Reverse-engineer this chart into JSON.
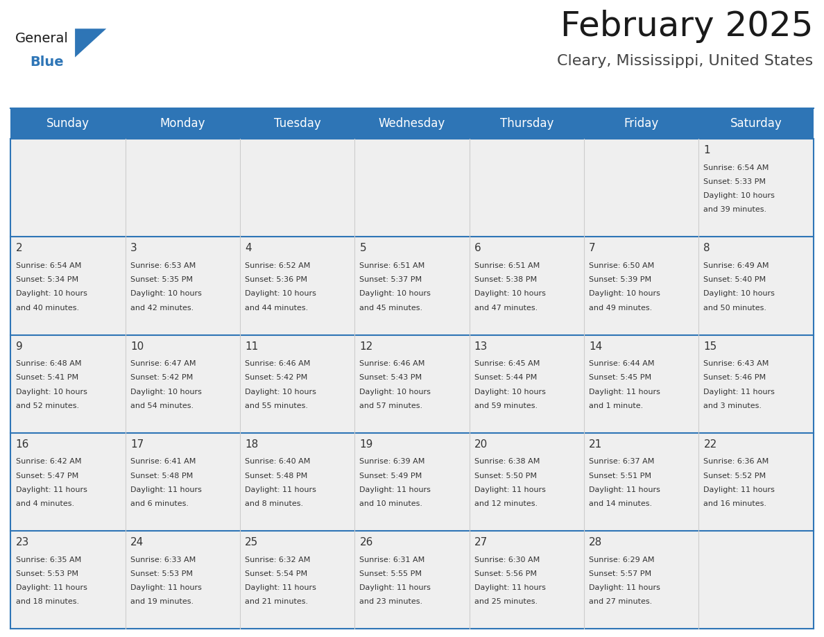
{
  "title": "February 2025",
  "subtitle": "Cleary, Mississippi, United States",
  "header_color": "#2E75B6",
  "header_text_color": "#FFFFFF",
  "cell_bg_color": "#EFEFEF",
  "border_color": "#2E75B6",
  "cell_border_color": "#2E75B6",
  "vert_line_color": "#CCCCCC",
  "title_color": "#1a1a1a",
  "subtitle_color": "#444444",
  "day_number_color": "#333333",
  "cell_text_color": "#333333",
  "days_of_week": [
    "Sunday",
    "Monday",
    "Tuesday",
    "Wednesday",
    "Thursday",
    "Friday",
    "Saturday"
  ],
  "weeks": [
    [
      {
        "day": null,
        "sunrise": null,
        "sunset": null,
        "daylight": null
      },
      {
        "day": null,
        "sunrise": null,
        "sunset": null,
        "daylight": null
      },
      {
        "day": null,
        "sunrise": null,
        "sunset": null,
        "daylight": null
      },
      {
        "day": null,
        "sunrise": null,
        "sunset": null,
        "daylight": null
      },
      {
        "day": null,
        "sunrise": null,
        "sunset": null,
        "daylight": null
      },
      {
        "day": null,
        "sunrise": null,
        "sunset": null,
        "daylight": null
      },
      {
        "day": 1,
        "sunrise": "6:54 AM",
        "sunset": "5:33 PM",
        "daylight": "10 hours\nand 39 minutes."
      }
    ],
    [
      {
        "day": 2,
        "sunrise": "6:54 AM",
        "sunset": "5:34 PM",
        "daylight": "10 hours\nand 40 minutes."
      },
      {
        "day": 3,
        "sunrise": "6:53 AM",
        "sunset": "5:35 PM",
        "daylight": "10 hours\nand 42 minutes."
      },
      {
        "day": 4,
        "sunrise": "6:52 AM",
        "sunset": "5:36 PM",
        "daylight": "10 hours\nand 44 minutes."
      },
      {
        "day": 5,
        "sunrise": "6:51 AM",
        "sunset": "5:37 PM",
        "daylight": "10 hours\nand 45 minutes."
      },
      {
        "day": 6,
        "sunrise": "6:51 AM",
        "sunset": "5:38 PM",
        "daylight": "10 hours\nand 47 minutes."
      },
      {
        "day": 7,
        "sunrise": "6:50 AM",
        "sunset": "5:39 PM",
        "daylight": "10 hours\nand 49 minutes."
      },
      {
        "day": 8,
        "sunrise": "6:49 AM",
        "sunset": "5:40 PM",
        "daylight": "10 hours\nand 50 minutes."
      }
    ],
    [
      {
        "day": 9,
        "sunrise": "6:48 AM",
        "sunset": "5:41 PM",
        "daylight": "10 hours\nand 52 minutes."
      },
      {
        "day": 10,
        "sunrise": "6:47 AM",
        "sunset": "5:42 PM",
        "daylight": "10 hours\nand 54 minutes."
      },
      {
        "day": 11,
        "sunrise": "6:46 AM",
        "sunset": "5:42 PM",
        "daylight": "10 hours\nand 55 minutes."
      },
      {
        "day": 12,
        "sunrise": "6:46 AM",
        "sunset": "5:43 PM",
        "daylight": "10 hours\nand 57 minutes."
      },
      {
        "day": 13,
        "sunrise": "6:45 AM",
        "sunset": "5:44 PM",
        "daylight": "10 hours\nand 59 minutes."
      },
      {
        "day": 14,
        "sunrise": "6:44 AM",
        "sunset": "5:45 PM",
        "daylight": "11 hours\nand 1 minute."
      },
      {
        "day": 15,
        "sunrise": "6:43 AM",
        "sunset": "5:46 PM",
        "daylight": "11 hours\nand 3 minutes."
      }
    ],
    [
      {
        "day": 16,
        "sunrise": "6:42 AM",
        "sunset": "5:47 PM",
        "daylight": "11 hours\nand 4 minutes."
      },
      {
        "day": 17,
        "sunrise": "6:41 AM",
        "sunset": "5:48 PM",
        "daylight": "11 hours\nand 6 minutes."
      },
      {
        "day": 18,
        "sunrise": "6:40 AM",
        "sunset": "5:48 PM",
        "daylight": "11 hours\nand 8 minutes."
      },
      {
        "day": 19,
        "sunrise": "6:39 AM",
        "sunset": "5:49 PM",
        "daylight": "11 hours\nand 10 minutes."
      },
      {
        "day": 20,
        "sunrise": "6:38 AM",
        "sunset": "5:50 PM",
        "daylight": "11 hours\nand 12 minutes."
      },
      {
        "day": 21,
        "sunrise": "6:37 AM",
        "sunset": "5:51 PM",
        "daylight": "11 hours\nand 14 minutes."
      },
      {
        "day": 22,
        "sunrise": "6:36 AM",
        "sunset": "5:52 PM",
        "daylight": "11 hours\nand 16 minutes."
      }
    ],
    [
      {
        "day": 23,
        "sunrise": "6:35 AM",
        "sunset": "5:53 PM",
        "daylight": "11 hours\nand 18 minutes."
      },
      {
        "day": 24,
        "sunrise": "6:33 AM",
        "sunset": "5:53 PM",
        "daylight": "11 hours\nand 19 minutes."
      },
      {
        "day": 25,
        "sunrise": "6:32 AM",
        "sunset": "5:54 PM",
        "daylight": "11 hours\nand 21 minutes."
      },
      {
        "day": 26,
        "sunrise": "6:31 AM",
        "sunset": "5:55 PM",
        "daylight": "11 hours\nand 23 minutes."
      },
      {
        "day": 27,
        "sunrise": "6:30 AM",
        "sunset": "5:56 PM",
        "daylight": "11 hours\nand 25 minutes."
      },
      {
        "day": 28,
        "sunrise": "6:29 AM",
        "sunset": "5:57 PM",
        "daylight": "11 hours\nand 27 minutes."
      },
      {
        "day": null,
        "sunrise": null,
        "sunset": null,
        "daylight": null
      }
    ]
  ],
  "logo_text_general": "General",
  "logo_text_blue": "Blue",
  "logo_color_general": "#1a1a1a",
  "logo_color_blue": "#2E75B6",
  "logo_triangle_color": "#2E75B6",
  "title_fontsize": 36,
  "subtitle_fontsize": 16,
  "header_fontsize": 12,
  "day_num_fontsize": 11,
  "cell_text_fontsize": 8
}
